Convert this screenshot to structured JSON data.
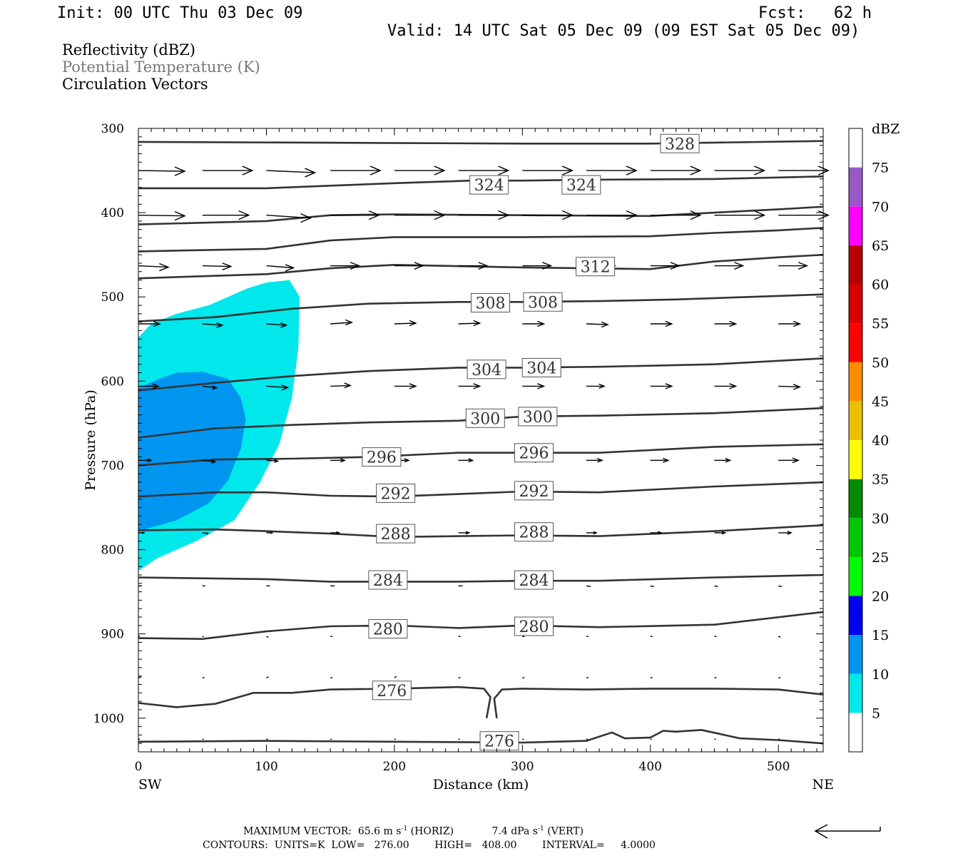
{
  "header": {
    "init": "Init: 00 UTC Thu 03 Dec 09",
    "fcst": "Fcst:   62 h",
    "valid": "Valid: 14 UTC Sat 05 Dec 09 (09 EST Sat 05 Dec 09)"
  },
  "fields": {
    "reflectivity": "Reflectivity (dBZ)",
    "theta": "Potential Temperature (K)",
    "vectors": "Circulation Vectors"
  },
  "footer": {
    "max_vector_label": "MAXIMUM VECTOR:",
    "horiz": "65.6 m s",
    "horiz_unit": "(HORIZ)",
    "vert": "7.4 dPa s",
    "vert_unit": "(VERT)",
    "contours": "CONTOURS:  UNITS=K  LOW=   276.00        HIGH=   408.00        INTERVAL=     4.0000"
  },
  "colors": {
    "contour": "#333333",
    "refl_5": "#00e8ec",
    "refl_10": "#0096f0",
    "theta_label_text": "#333333",
    "subtitle_gray": "#777777"
  },
  "chart_data": {
    "type": "cross-section",
    "xlabel": "Distance (km)",
    "ylabel": "Pressure (hPa)",
    "xlim": [
      0,
      535
    ],
    "ylim": [
      300,
      1040
    ],
    "y_inverted": true,
    "x_ticks": [
      0,
      100,
      200,
      300,
      400,
      500
    ],
    "y_ticks": [
      300,
      400,
      500,
      600,
      700,
      800,
      900,
      1000
    ],
    "x_end_labels": {
      "left": "SW",
      "right": "NE"
    },
    "colorbar": {
      "unit": "dBZ",
      "levels": [
        5,
        10,
        15,
        20,
        25,
        30,
        35,
        40,
        45,
        50,
        55,
        60,
        65,
        70,
        75
      ],
      "colors": [
        "#ffffff",
        "#00e8ec",
        "#0096f0",
        "#0000f0",
        "#00ff00",
        "#00c800",
        "#008c00",
        "#ffff00",
        "#e8c000",
        "#ff8c00",
        "#ff0000",
        "#d80000",
        "#b80000",
        "#ff00ff",
        "#9858c8",
        "#ffffff"
      ]
    },
    "reflectivity_areas": [
      {
        "dbz": 5,
        "points": [
          [
            0,
            548
          ],
          [
            10,
            532
          ],
          [
            30,
            520
          ],
          [
            55,
            510
          ],
          [
            70,
            500
          ],
          [
            85,
            490
          ],
          [
            100,
            483
          ],
          [
            118,
            480
          ],
          [
            126,
            500
          ],
          [
            125,
            560
          ],
          [
            120,
            620
          ],
          [
            110,
            675
          ],
          [
            95,
            720
          ],
          [
            75,
            765
          ],
          [
            45,
            790
          ],
          [
            15,
            810
          ],
          [
            0,
            825
          ]
        ]
      },
      {
        "dbz": 10,
        "points": [
          [
            0,
            608
          ],
          [
            15,
            598
          ],
          [
            30,
            590
          ],
          [
            50,
            589
          ],
          [
            70,
            597
          ],
          [
            80,
            620
          ],
          [
            84,
            645
          ],
          [
            80,
            680
          ],
          [
            70,
            718
          ],
          [
            55,
            745
          ],
          [
            30,
            765
          ],
          [
            0,
            778
          ]
        ]
      }
    ],
    "theta_contours": [
      {
        "value": 328,
        "points": [
          [
            0,
            316
          ],
          [
            150,
            317
          ],
          [
            300,
            318
          ],
          [
            400,
            318
          ],
          [
            535,
            315
          ]
        ]
      },
      {
        "value": 324,
        "points": [
          [
            0,
            371
          ],
          [
            100,
            371
          ],
          [
            150,
            368
          ],
          [
            200,
            365
          ],
          [
            260,
            362
          ],
          [
            300,
            362
          ],
          [
            350,
            361
          ],
          [
            450,
            360
          ],
          [
            535,
            357
          ]
        ]
      },
      {
        "value": 320,
        "points": [
          [
            0,
            414
          ],
          [
            100,
            410
          ],
          [
            150,
            403
          ],
          [
            200,
            402
          ],
          [
            300,
            403
          ],
          [
            400,
            404
          ],
          [
            450,
            400
          ],
          [
            500,
            396
          ],
          [
            535,
            393
          ]
        ]
      },
      {
        "value": 316,
        "points": [
          [
            0,
            446
          ],
          [
            100,
            443
          ],
          [
            150,
            433
          ],
          [
            200,
            429
          ],
          [
            300,
            429
          ],
          [
            400,
            428
          ],
          [
            450,
            424
          ],
          [
            500,
            421
          ],
          [
            535,
            418
          ]
        ]
      },
      {
        "value": 312,
        "points": [
          [
            0,
            478
          ],
          [
            100,
            473
          ],
          [
            150,
            466
          ],
          [
            200,
            462
          ],
          [
            300,
            465
          ],
          [
            400,
            467
          ],
          [
            450,
            458
          ],
          [
            500,
            453
          ],
          [
            535,
            450
          ]
        ]
      },
      {
        "value": 308,
        "points": [
          [
            0,
            529
          ],
          [
            60,
            524
          ],
          [
            120,
            514
          ],
          [
            180,
            508
          ],
          [
            250,
            506
          ],
          [
            300,
            506
          ],
          [
            360,
            505
          ],
          [
            420,
            503
          ],
          [
            535,
            497
          ]
        ]
      },
      {
        "value": 304,
        "points": [
          [
            0,
            611
          ],
          [
            60,
            602
          ],
          [
            120,
            594
          ],
          [
            180,
            588
          ],
          [
            250,
            584
          ],
          [
            300,
            584
          ],
          [
            360,
            583
          ],
          [
            450,
            580
          ],
          [
            535,
            573
          ]
        ]
      },
      {
        "value": 300,
        "points": [
          [
            0,
            667
          ],
          [
            60,
            656
          ],
          [
            120,
            652
          ],
          [
            180,
            649
          ],
          [
            250,
            647
          ],
          [
            300,
            642
          ],
          [
            360,
            641
          ],
          [
            450,
            638
          ],
          [
            535,
            632
          ]
        ]
      },
      {
        "value": 296,
        "points": [
          [
            0,
            700
          ],
          [
            60,
            693
          ],
          [
            120,
            692
          ],
          [
            180,
            690
          ],
          [
            250,
            685
          ],
          [
            300,
            685
          ],
          [
            360,
            685
          ],
          [
            450,
            678
          ],
          [
            535,
            675
          ]
        ]
      },
      {
        "value": 292,
        "points": [
          [
            0,
            737
          ],
          [
            60,
            732
          ],
          [
            100,
            732
          ],
          [
            150,
            736
          ],
          [
            200,
            737
          ],
          [
            250,
            734
          ],
          [
            300,
            731
          ],
          [
            360,
            732
          ],
          [
            450,
            725
          ],
          [
            535,
            720
          ]
        ]
      },
      {
        "value": 288,
        "points": [
          [
            0,
            777
          ],
          [
            60,
            776
          ],
          [
            100,
            778
          ],
          [
            150,
            781
          ],
          [
            200,
            785
          ],
          [
            250,
            784
          ],
          [
            300,
            783
          ],
          [
            360,
            784
          ],
          [
            450,
            778
          ],
          [
            535,
            771
          ]
        ]
      },
      {
        "value": 284,
        "points": [
          [
            0,
            833
          ],
          [
            100,
            835
          ],
          [
            150,
            838
          ],
          [
            200,
            838
          ],
          [
            250,
            838
          ],
          [
            300,
            837
          ],
          [
            360,
            837
          ],
          [
            450,
            833
          ],
          [
            535,
            830
          ]
        ]
      },
      {
        "value": 280,
        "points": [
          [
            0,
            905
          ],
          [
            50,
            906
          ],
          [
            100,
            897
          ],
          [
            150,
            891
          ],
          [
            200,
            890
          ],
          [
            250,
            893
          ],
          [
            300,
            890
          ],
          [
            360,
            892
          ],
          [
            450,
            889
          ],
          [
            535,
            874
          ]
        ]
      },
      {
        "value": 276,
        "points": [
          [
            0,
            982
          ],
          [
            30,
            987
          ],
          [
            60,
            983
          ],
          [
            90,
            970
          ],
          [
            120,
            970
          ],
          [
            150,
            966
          ],
          [
            200,
            965
          ],
          [
            250,
            963
          ],
          [
            270,
            965
          ],
          [
            275,
            975
          ],
          [
            272,
            1000
          ]
        ]
      },
      {
        "value": 276,
        "points": [
          [
            280,
            1000
          ],
          [
            278,
            977
          ],
          [
            284,
            966
          ],
          [
            300,
            965
          ],
          [
            350,
            966
          ],
          [
            400,
            965
          ],
          [
            450,
            965
          ],
          [
            500,
            966
          ],
          [
            535,
            972
          ]
        ]
      },
      {
        "value": 276,
        "points": [
          [
            0,
            1028
          ],
          [
            100,
            1027
          ],
          [
            200,
            1028
          ],
          [
            300,
            1029
          ],
          [
            350,
            1027
          ],
          [
            370,
            1017
          ],
          [
            380,
            1024
          ],
          [
            400,
            1023
          ],
          [
            410,
            1015
          ],
          [
            420,
            1016
          ],
          [
            440,
            1014
          ],
          [
            470,
            1024
          ],
          [
            500,
            1026
          ],
          [
            535,
            1030
          ]
        ]
      }
    ],
    "theta_labels": [
      {
        "value": 328,
        "x": 423,
        "p": 318
      },
      {
        "value": 324,
        "x": 274,
        "p": 367
      },
      {
        "value": 324,
        "x": 346,
        "p": 367
      },
      {
        "value": 312,
        "x": 357,
        "p": 464
      },
      {
        "value": 308,
        "x": 275,
        "p": 507
      },
      {
        "value": 308,
        "x": 316,
        "p": 506
      },
      {
        "value": 304,
        "x": 272,
        "p": 586
      },
      {
        "value": 304,
        "x": 315,
        "p": 584
      },
      {
        "value": 300,
        "x": 271,
        "p": 644
      },
      {
        "value": 300,
        "x": 312,
        "p": 642
      },
      {
        "value": 296,
        "x": 190,
        "p": 690
      },
      {
        "value": 296,
        "x": 309,
        "p": 685
      },
      {
        "value": 292,
        "x": 201,
        "p": 733
      },
      {
        "value": 292,
        "x": 309,
        "p": 730
      },
      {
        "value": 288,
        "x": 201,
        "p": 781
      },
      {
        "value": 288,
        "x": 309,
        "p": 779
      },
      {
        "value": 284,
        "x": 195,
        "p": 836
      },
      {
        "value": 284,
        "x": 309,
        "p": 836
      },
      {
        "value": 280,
        "x": 195,
        "p": 894
      },
      {
        "value": 280,
        "x": 309,
        "p": 891
      },
      {
        "value": 276,
        "x": 198,
        "p": 967
      },
      {
        "value": 276,
        "x": 282,
        "p": 1027
      }
    ],
    "vector_rows": [
      {
        "p": 350,
        "lengths": [
          65,
          70,
          68,
          70,
          70,
          70,
          70,
          70,
          70,
          70,
          70
        ],
        "tilt": [
          1,
          0,
          3,
          0,
          0,
          0,
          0,
          0,
          0,
          0,
          0
        ]
      },
      {
        "p": 403,
        "lengths": [
          65,
          65,
          62,
          68,
          70,
          70,
          70,
          70,
          70,
          70,
          70
        ],
        "tilt": [
          1,
          0,
          4,
          0,
          0,
          0,
          0,
          0,
          0,
          0,
          0
        ]
      },
      {
        "p": 463,
        "lengths": [
          42,
          40,
          38,
          40,
          40,
          40,
          40,
          40,
          40,
          40,
          40
        ],
        "tilt": [
          2,
          1,
          3,
          0,
          0,
          0,
          0,
          0,
          0,
          0,
          0
        ]
      },
      {
        "p": 532,
        "lengths": [
          30,
          28,
          28,
          30,
          30,
          30,
          30,
          30,
          30,
          30,
          30
        ],
        "tilt": [
          0,
          2,
          2,
          -2,
          -1,
          -1,
          0,
          1,
          0,
          0,
          0
        ]
      },
      {
        "p": 606,
        "lengths": [
          28,
          20,
          30,
          28,
          30,
          30,
          30,
          25,
          30,
          30,
          30
        ],
        "tilt": [
          0,
          2,
          2,
          -1,
          0,
          0,
          0,
          0,
          0,
          0,
          1
        ]
      },
      {
        "p": 694,
        "lengths": [
          18,
          18,
          16,
          20,
          20,
          20,
          25,
          22,
          25,
          22,
          28
        ],
        "tilt": [
          0,
          2,
          1,
          0,
          0,
          0,
          0,
          0,
          0,
          0,
          0
        ]
      },
      {
        "p": 780,
        "lengths": [
          8,
          8,
          8,
          12,
          12,
          15,
          12,
          14,
          15,
          15,
          18
        ],
        "tilt": [
          0,
          1,
          0,
          0,
          0,
          0,
          0,
          0,
          0,
          0,
          0
        ]
      },
      {
        "p": 843,
        "lengths": [
          5,
          4,
          5,
          6,
          6,
          6,
          6,
          6,
          5,
          5,
          5
        ],
        "tilt": [
          0,
          0,
          0,
          0,
          0,
          0,
          0,
          1,
          1,
          1,
          1
        ]
      },
      {
        "p": 903,
        "lengths": [
          2,
          2,
          3,
          3,
          3,
          3,
          3,
          3,
          3,
          3,
          3
        ],
        "tilt": [
          -1,
          0,
          1,
          0,
          0,
          0,
          0,
          0,
          0,
          0,
          1
        ]
      },
      {
        "p": 952,
        "lengths": [
          4,
          3,
          3,
          3,
          3,
          3,
          3,
          3,
          3,
          3,
          3
        ],
        "tilt": [
          -1,
          0,
          -1,
          0,
          -2,
          0,
          0,
          0,
          0,
          0,
          0
        ]
      },
      {
        "p": 1025,
        "lengths": [
          2,
          2,
          2,
          2,
          2,
          2,
          2,
          2,
          2,
          2,
          2
        ],
        "tilt": [
          0,
          0,
          0,
          0,
          0,
          0,
          0,
          0,
          0,
          0,
          0
        ]
      }
    ],
    "vector_columns_km": [
      0,
      50,
      100,
      150,
      200,
      250,
      300,
      350,
      400,
      450,
      500
    ]
  }
}
